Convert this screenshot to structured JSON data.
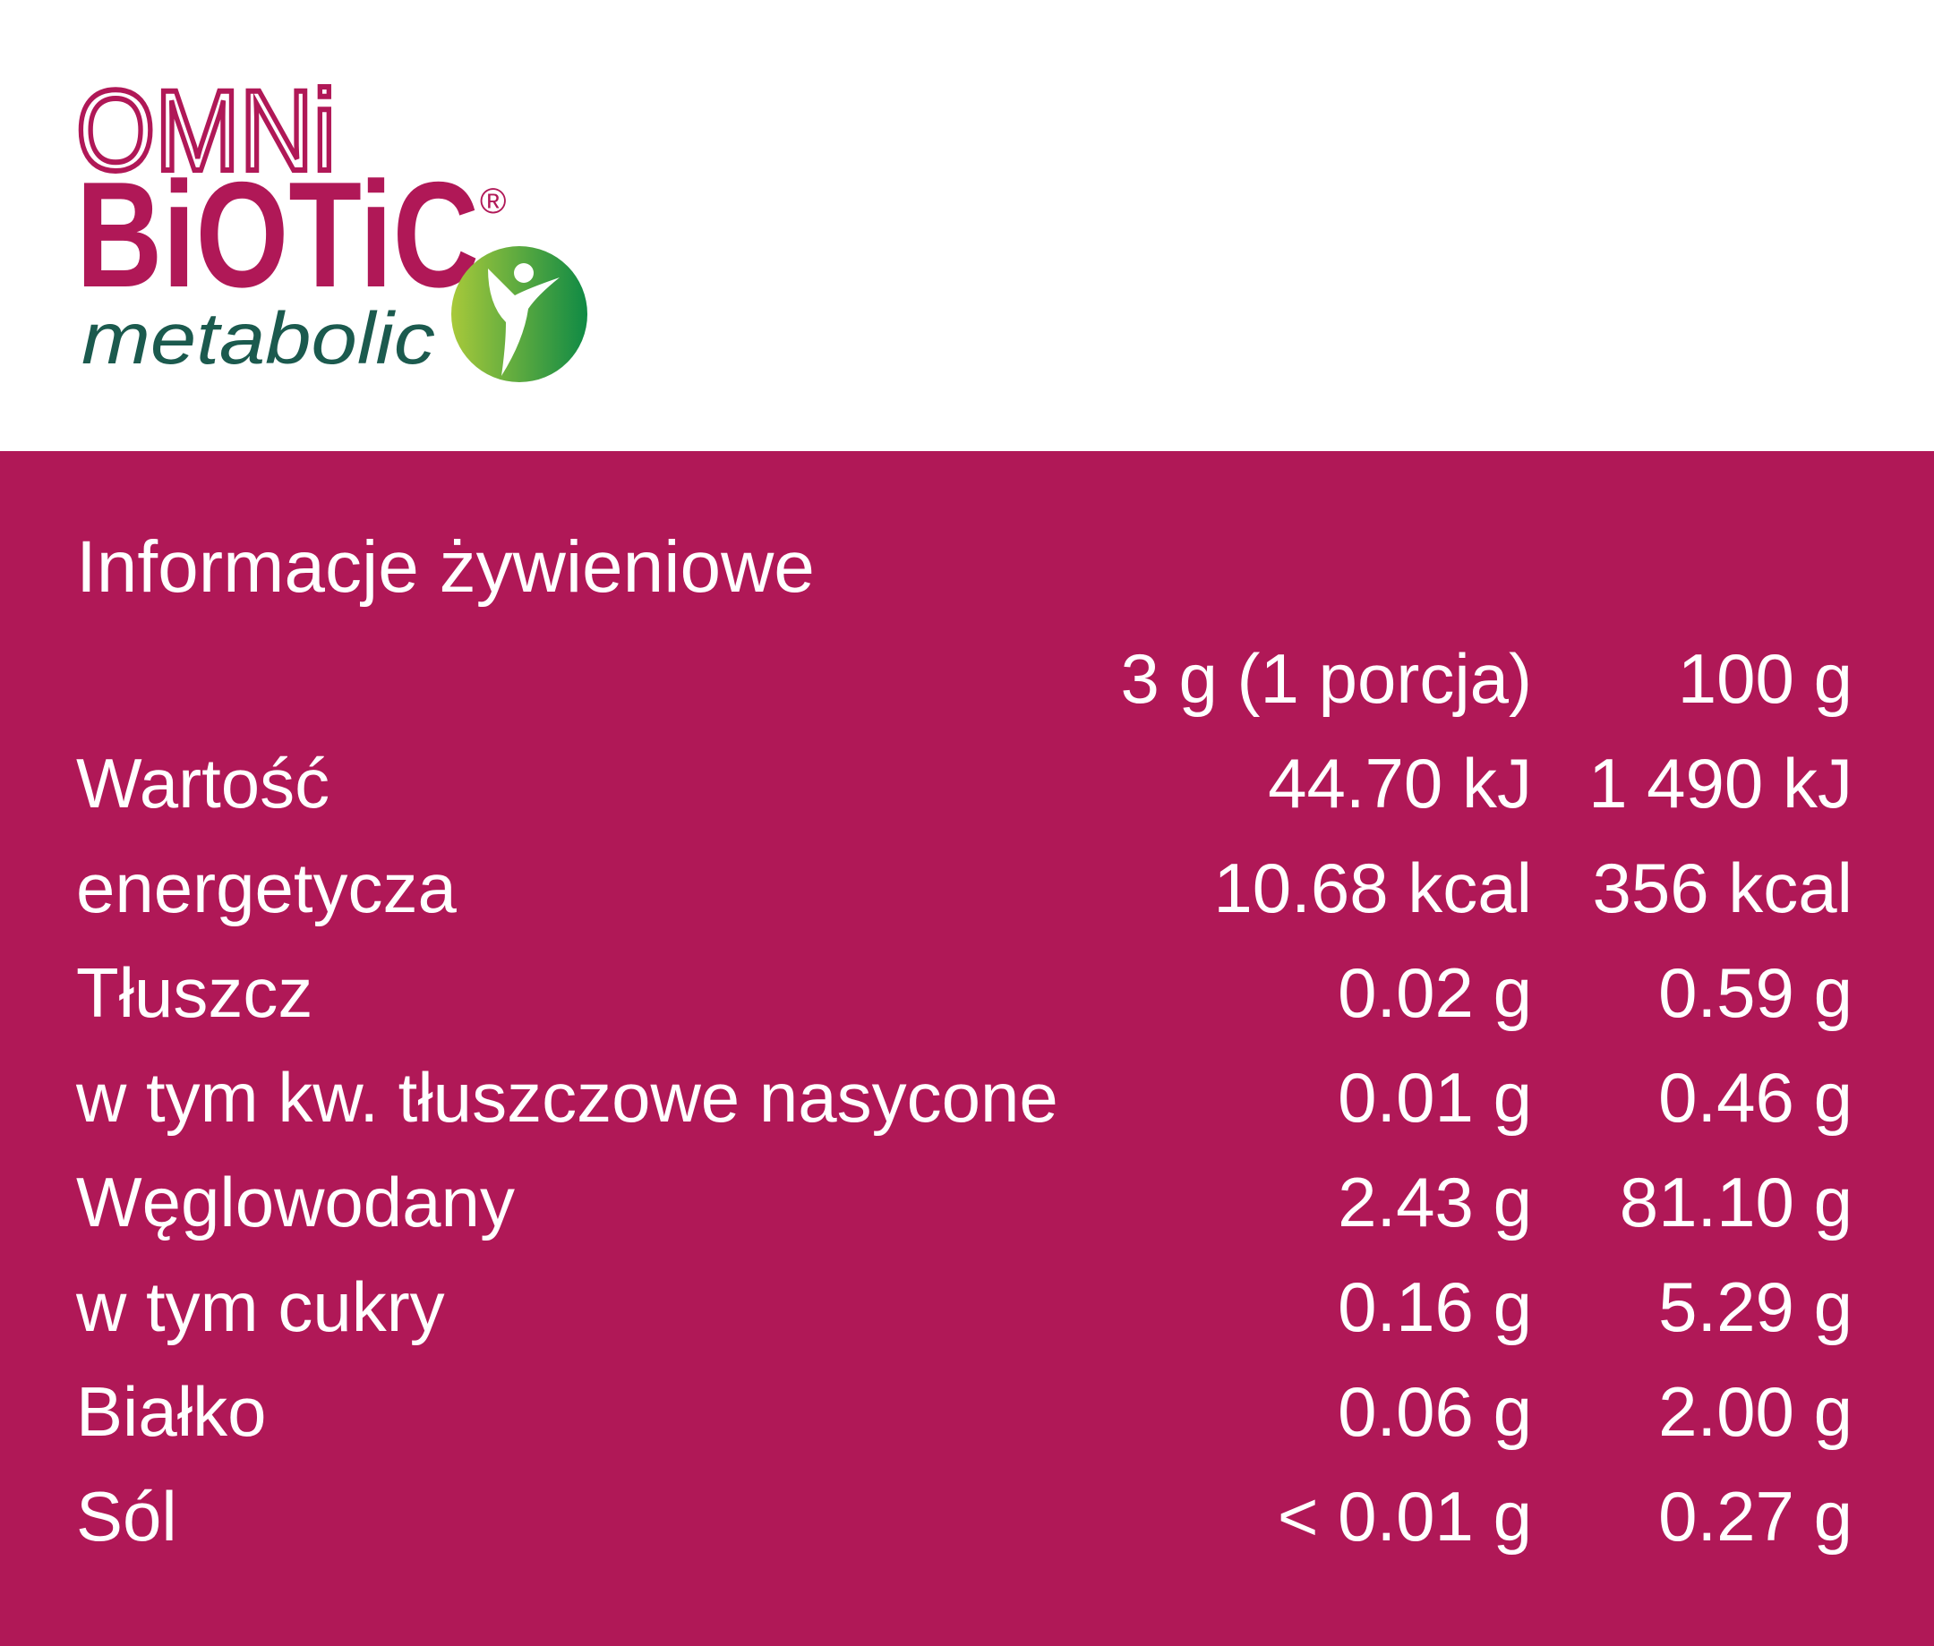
{
  "logo": {
    "line1": "OMNi",
    "line2": "BiOTiC",
    "registered": "®",
    "line3": "metabolic"
  },
  "title": "Informacje żywieniowe",
  "table": {
    "columns": [
      "3 g (1 porcja)",
      "100 g"
    ],
    "rows": [
      [
        "Wartość",
        "44.70 kJ",
        "1 490 kJ"
      ],
      [
        "energetycza",
        "10.68 kcal",
        "356 kcal"
      ],
      [
        "Tłuszcz",
        "0.02 g",
        "0.59 g"
      ],
      [
        "w tym kw. tłuszczowe nasycone",
        "0.01 g",
        "0.46 g"
      ],
      [
        "Węglowodany",
        "2.43 g",
        "81.10 g"
      ],
      [
        "w tym cukry",
        "0.16 g",
        "5.29 g"
      ],
      [
        "Białko",
        "0.06 g",
        "2.00 g"
      ],
      [
        "Sól",
        "< 0.01 g",
        "0.27 g"
      ]
    ]
  }
}
